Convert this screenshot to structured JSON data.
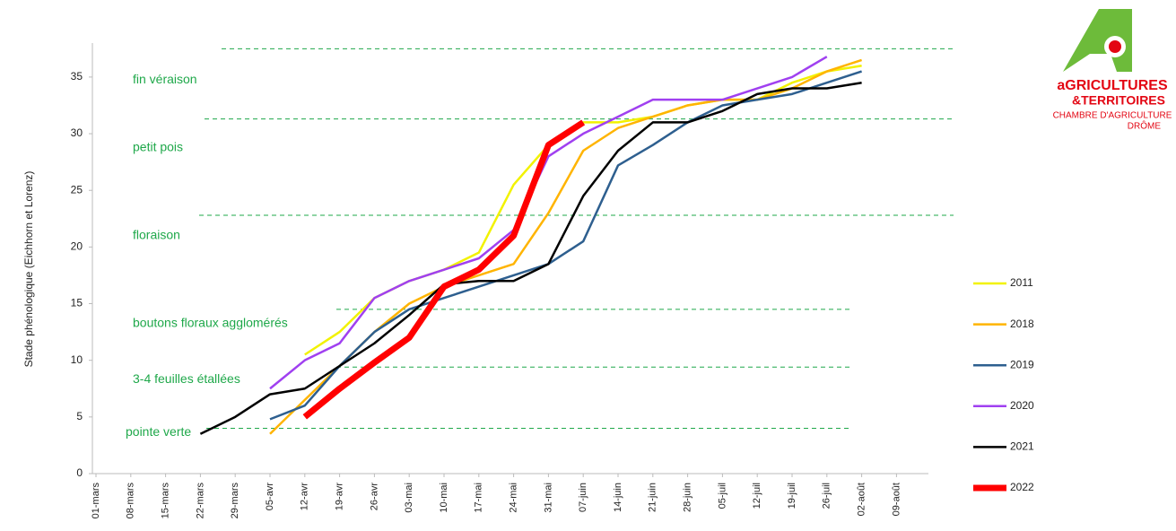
{
  "chart_data": {
    "type": "line",
    "y_label": "Stade phénologique (Eichhorn et Lorenz)",
    "categories": [
      "01-mars",
      "08-mars",
      "15-mars",
      "22-mars",
      "29-mars",
      "05-avr",
      "12-avr",
      "19-avr",
      "26-avr",
      "03-mai",
      "10-mai",
      "17-mai",
      "24-mai",
      "31-mai",
      "07-juin",
      "14-juin",
      "21-juin",
      "28-juin",
      "05-juil",
      "12-juil",
      "19-juil",
      "26-juil",
      "02-août",
      "09-août"
    ],
    "ylim": [
      0,
      38
    ],
    "yticks": [
      0,
      5,
      10,
      15,
      20,
      25,
      30,
      35
    ],
    "stages": [
      {
        "label": "fin véraison",
        "value": 37.5
      },
      {
        "label": "petit pois",
        "value": 31.3
      },
      {
        "label": "floraison",
        "value": 22.8
      },
      {
        "label": "boutons floraux agglomérés",
        "value": 14.5
      },
      {
        "label": "3-4 feuilles étallées",
        "value": 9.4
      },
      {
        "label": "pointe verte",
        "value": 4
      }
    ],
    "series": [
      {
        "name": "2011",
        "color": "#f2f200",
        "values": [
          null,
          null,
          null,
          null,
          null,
          null,
          10.5,
          12.5,
          15.5,
          17,
          18,
          19.5,
          25.5,
          29,
          31,
          31,
          31.5,
          32.5,
          33,
          33,
          34.5,
          35.5,
          36,
          null
        ]
      },
      {
        "name": "2018",
        "color": "#ffb400",
        "values": [
          null,
          null,
          null,
          null,
          null,
          3.5,
          6.5,
          9.5,
          12.5,
          15,
          16.5,
          17.5,
          18.5,
          23,
          28.5,
          30.5,
          31.5,
          32.5,
          33,
          33,
          34,
          35.5,
          36.5,
          null
        ]
      },
      {
        "name": "2019",
        "color": "#2e5f8f",
        "values": [
          null,
          null,
          null,
          null,
          null,
          4.8,
          6,
          9.5,
          12.5,
          14.5,
          15.5,
          16.5,
          17.5,
          18.5,
          20.5,
          27.2,
          29,
          31,
          32.5,
          33,
          33.5,
          34.5,
          35.5,
          null
        ]
      },
      {
        "name": "2020",
        "color": "#a040f0",
        "values": [
          null,
          null,
          null,
          null,
          null,
          7.5,
          10,
          11.5,
          15.5,
          17,
          18,
          19,
          21.5,
          28,
          30,
          31.5,
          33,
          33,
          33,
          34,
          35,
          36.8,
          null,
          null
        ]
      },
      {
        "name": "2021",
        "color": "#000000",
        "values": [
          null,
          null,
          null,
          3.5,
          5,
          7,
          7.5,
          9.5,
          11.5,
          14,
          16.7,
          17,
          17,
          18.5,
          24.5,
          28.5,
          31,
          31,
          32,
          33.5,
          34,
          34,
          34.5,
          null
        ]
      },
      {
        "name": "2022",
        "color": "#ff0000",
        "values": [
          null,
          null,
          null,
          null,
          null,
          null,
          5,
          7.5,
          9.8,
          12,
          16.5,
          18,
          21,
          29,
          31,
          null,
          null,
          null,
          null,
          null,
          null,
          null,
          null,
          null
        ]
      }
    ]
  },
  "logo": {
    "line1": "aGRICULTURES",
    "line2": "&TERRITOIRES",
    "line3": "CHAMBRE D'AGRICULTURE",
    "line4": "DRÔME"
  }
}
